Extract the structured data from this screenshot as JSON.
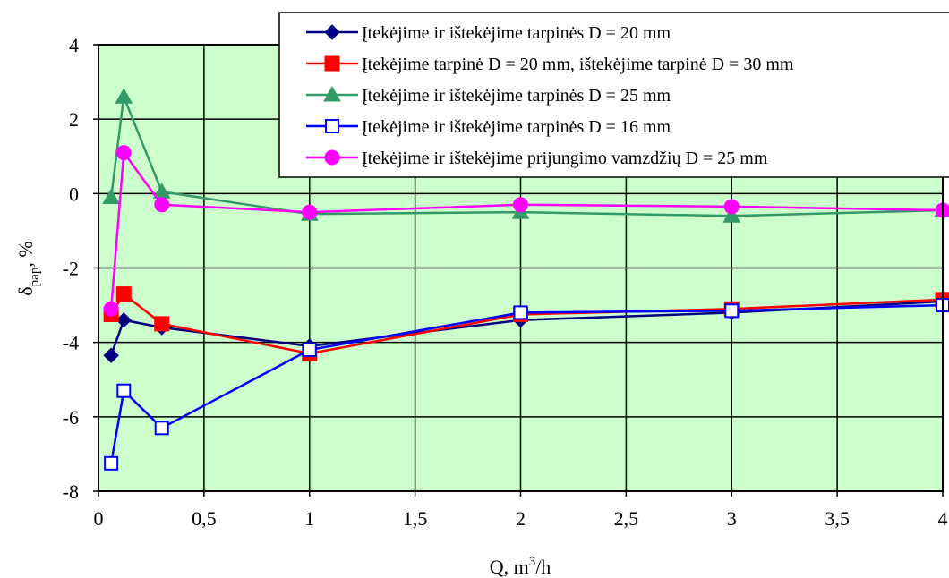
{
  "chart_data": {
    "type": "line",
    "xlabel_main": "Q, m",
    "xlabel_sup": "3",
    "xlabel_tail": "/h",
    "ylabel_main": "δ",
    "ylabel_sub": "pap",
    "ylabel_tail": ",  %",
    "xlim": [
      0,
      4
    ],
    "ylim": [
      -8,
      4
    ],
    "x_ticks": [
      0,
      0.5,
      1,
      1.5,
      2,
      2.5,
      3,
      3.5,
      4
    ],
    "x_tick_labels": [
      "0",
      "0,5",
      "1",
      "1,5",
      "2",
      "2,5",
      "3",
      "3,5",
      "4"
    ],
    "y_ticks": [
      -8,
      -6,
      -4,
      -2,
      0,
      2,
      4
    ],
    "y_tick_labels": [
      "-8",
      "-6",
      "-4",
      "-2",
      "0",
      "2",
      "4"
    ],
    "grid": true,
    "plot_background": "#ccffcc",
    "legend_position": "top-right",
    "series": [
      {
        "name": "Įtekėjime ir ištekėjime tarpinės D = 20 mm",
        "color": "#000080",
        "marker": "diamond",
        "x": [
          0.06,
          0.12,
          0.3,
          1,
          2,
          3,
          4
        ],
        "y": [
          -4.35,
          -3.4,
          -3.6,
          -4.1,
          -3.4,
          -3.2,
          -2.9
        ]
      },
      {
        "name": "Įtekėjime tarpinė D = 20 mm, ištekėjime tarpinė D = 30 mm",
        "color": "#ff0000",
        "marker": "square",
        "x": [
          0.06,
          0.12,
          0.3,
          1,
          2,
          3,
          4
        ],
        "y": [
          -3.25,
          -2.7,
          -3.5,
          -4.3,
          -3.25,
          -3.1,
          -2.85
        ]
      },
      {
        "name": "Įtekėjime ir ištekėjime tarpinės D = 25 mm",
        "color": "#339966",
        "marker": "triangle",
        "x": [
          0.06,
          0.12,
          0.3,
          1,
          2,
          3,
          4
        ],
        "y": [
          -0.1,
          2.6,
          0.05,
          -0.55,
          -0.5,
          -0.6,
          -0.45
        ]
      },
      {
        "name": "Įtekėjime ir ištekėjime tarpinės D = 16 mm",
        "color": "#0000ff",
        "marker": "open-square",
        "x": [
          0.06,
          0.12,
          0.3,
          1,
          2,
          3,
          4
        ],
        "y": [
          -7.25,
          -5.3,
          -6.3,
          -4.2,
          -3.2,
          -3.15,
          -3.0
        ]
      },
      {
        "name": "Įtekėjime ir ištekėjime prijungimo vamzdžių D = 25 mm",
        "color": "#ff00ff",
        "marker": "circle",
        "x": [
          0.06,
          0.12,
          0.3,
          1,
          2,
          3,
          4
        ],
        "y": [
          -3.1,
          1.1,
          -0.3,
          -0.5,
          -0.3,
          -0.35,
          -0.45
        ]
      }
    ]
  }
}
